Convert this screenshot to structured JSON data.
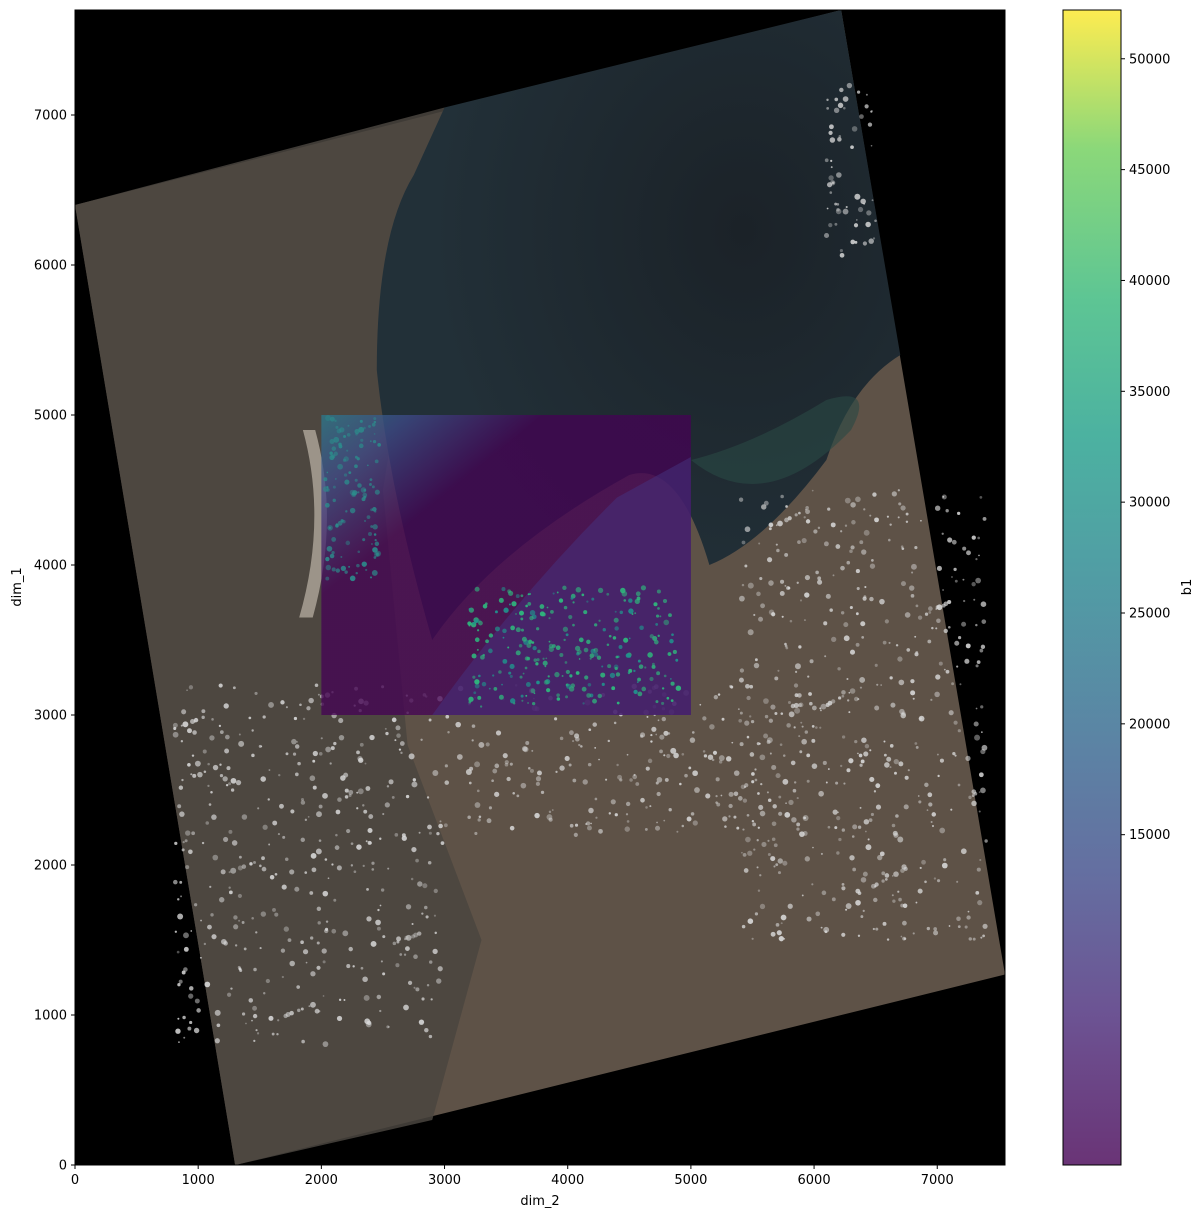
{
  "chart_data": {
    "type": "heatmap",
    "title": "",
    "xlabel": "dim_2",
    "ylabel": "dim_1",
    "xlim": [
      0,
      7550
    ],
    "ylim": [
      0,
      7700
    ],
    "x_ticks": [
      0,
      1000,
      2000,
      3000,
      4000,
      5000,
      6000,
      7000
    ],
    "y_ticks": [
      0,
      1000,
      2000,
      3000,
      4000,
      5000,
      6000,
      7000
    ],
    "background": {
      "kind": "satellite-rgb-scene",
      "footprint_corners": [
        [
          1300,
          0
        ],
        [
          7550,
          1270
        ],
        [
          6220,
          7700
        ],
        [
          0,
          6400
        ]
      ],
      "outside_color": "#000000",
      "land_color": "#5e5247",
      "water_color": "#1d262c",
      "cloud_color": "#d9d9d9"
    },
    "overlay": {
      "variable": "b1",
      "x_range": [
        2000,
        5000
      ],
      "y_range": [
        3000,
        5000
      ],
      "colormap": "viridis",
      "alpha": 0.75
    },
    "colorbar": {
      "label": "b1",
      "vmin": 100,
      "vmax": 52200,
      "ticks": [
        15000,
        20000,
        25000,
        30000,
        35000,
        40000,
        45000,
        50000
      ]
    },
    "grid": false,
    "legend": "none"
  }
}
